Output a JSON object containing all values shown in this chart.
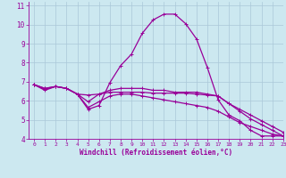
{
  "xlabel": "Windchill (Refroidissement éolien,°C)",
  "xlim": [
    -0.5,
    23
  ],
  "ylim": [
    4,
    11.2
  ],
  "yticks": [
    4,
    5,
    6,
    7,
    8,
    9,
    10,
    11
  ],
  "xticks": [
    0,
    1,
    2,
    3,
    4,
    5,
    6,
    7,
    8,
    9,
    10,
    11,
    12,
    13,
    14,
    15,
    16,
    17,
    18,
    19,
    20,
    21,
    22,
    23
  ],
  "background_color": "#cce8f0",
  "grid_color": "#aac8d8",
  "line_color": "#990099",
  "curves": [
    {
      "x": [
        0,
        1,
        2,
        3,
        4,
        5,
        6,
        7,
        8,
        9,
        10,
        11,
        12,
        13,
        14,
        15,
        16,
        17,
        18,
        19,
        20,
        21,
        22,
        23
      ],
      "y": [
        6.85,
        6.55,
        6.75,
        6.65,
        6.35,
        5.55,
        5.75,
        6.95,
        7.85,
        8.45,
        9.55,
        10.25,
        10.55,
        10.55,
        10.05,
        9.25,
        7.75,
        6.05,
        5.25,
        4.95,
        4.45,
        4.15,
        4.15,
        4.15
      ]
    },
    {
      "x": [
        0,
        1,
        2,
        3,
        4,
        5,
        6,
        7,
        8,
        9,
        10,
        11,
        12,
        13,
        14,
        15,
        16,
        17,
        18,
        19,
        20,
        21,
        22,
        23
      ],
      "y": [
        6.85,
        6.6,
        6.75,
        6.65,
        6.35,
        6.3,
        6.35,
        6.45,
        6.45,
        6.45,
        6.45,
        6.4,
        6.4,
        6.4,
        6.4,
        6.35,
        6.3,
        6.25,
        5.85,
        5.55,
        5.25,
        4.95,
        4.65,
        4.35
      ]
    },
    {
      "x": [
        0,
        1,
        2,
        3,
        4,
        5,
        6,
        7,
        8,
        9,
        10,
        11,
        12,
        13,
        14,
        15,
        16,
        17,
        18,
        19,
        20,
        21,
        22,
        23
      ],
      "y": [
        6.85,
        6.65,
        6.75,
        6.65,
        6.35,
        5.95,
        6.35,
        6.55,
        6.65,
        6.65,
        6.65,
        6.55,
        6.55,
        6.45,
        6.45,
        6.45,
        6.35,
        6.25,
        5.85,
        5.45,
        5.05,
        4.75,
        4.45,
        4.15
      ]
    },
    {
      "x": [
        0,
        1,
        2,
        3,
        4,
        5,
        6,
        7,
        8,
        9,
        10,
        11,
        12,
        13,
        14,
        15,
        16,
        17,
        18,
        19,
        20,
        21,
        22,
        23
      ],
      "y": [
        6.85,
        6.65,
        6.75,
        6.65,
        6.35,
        5.65,
        5.95,
        6.25,
        6.35,
        6.35,
        6.25,
        6.15,
        6.05,
        5.95,
        5.85,
        5.75,
        5.65,
        5.45,
        5.15,
        4.85,
        4.65,
        4.45,
        4.25,
        4.15
      ]
    }
  ],
  "marker": "+",
  "marker_size": 3.5,
  "linewidth": 0.9
}
